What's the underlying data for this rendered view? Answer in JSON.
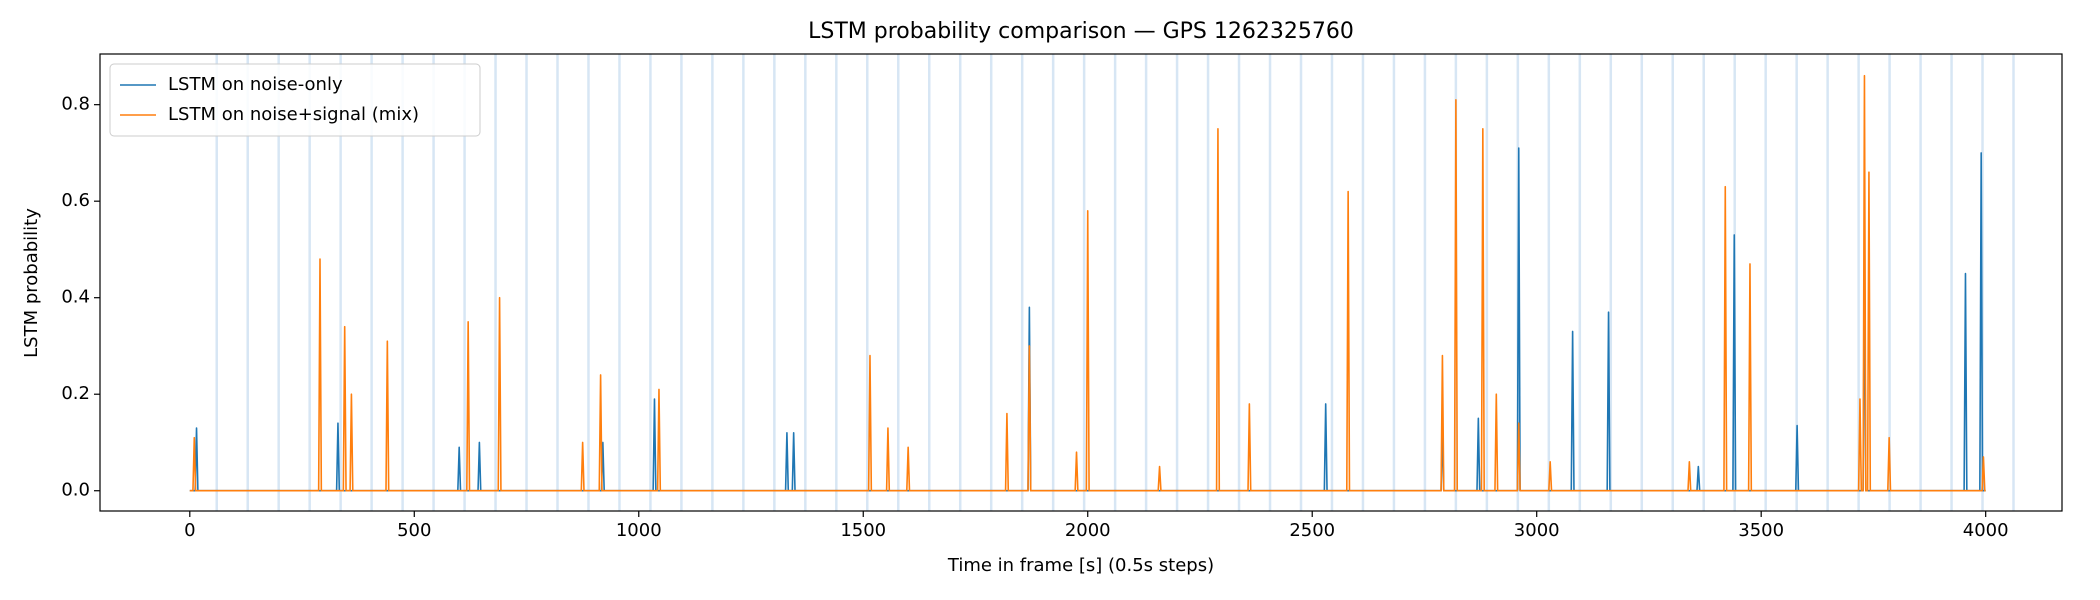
{
  "chart_data": {
    "type": "line",
    "title": "LSTM probability comparison — GPS 1262325760",
    "x_label": "Time in frame [s] (0.5s steps)",
    "y_label": "LSTM probability",
    "xlim": [
      -200,
      4170
    ],
    "ylim": [
      -0.042,
      0.905
    ],
    "xticks": [
      0,
      500,
      1000,
      1500,
      2000,
      2500,
      3000,
      3500,
      4000
    ],
    "yticks": [
      {
        "value": 0,
        "label": "0.0"
      },
      {
        "value": 0.2,
        "label": "0.2"
      },
      {
        "value": 0.4,
        "label": "0.4"
      },
      {
        "value": 0.6,
        "label": "0.6"
      },
      {
        "value": 0.8,
        "label": "0.8"
      }
    ],
    "legend": "upper left",
    "event_color": "#c6dbef",
    "event_lines": [
      60,
      129,
      198,
      267,
      336,
      405,
      474,
      543,
      612,
      681,
      750,
      819,
      888,
      957,
      1026,
      1095,
      1164,
      1233,
      1302,
      1371,
      1440,
      1509,
      1578,
      1647,
      1716,
      1785,
      1854,
      1923,
      1992,
      2061,
      2130,
      2199,
      2268,
      2337,
      2406,
      2475,
      2544,
      2613,
      2682,
      2751,
      2820,
      2889,
      2958,
      3027,
      3096,
      3165,
      3234,
      3303,
      3372,
      3441,
      3510,
      3579,
      3648,
      3717,
      3786,
      3855,
      3924,
      3993,
      4062
    ],
    "series": [
      {
        "name": "LSTM on noise-only",
        "color": "#1f77b4",
        "x": [
          0,
          12,
          15,
          18,
          327,
          330,
          333,
          597,
          600,
          603,
          642,
          645,
          648,
          917,
          920,
          923,
          1032,
          1035,
          1038,
          1327,
          1330,
          1333,
          1342,
          1345,
          1348,
          1867,
          1870,
          1873,
          2527,
          2530,
          2533,
          2787,
          2790,
          2793,
          2867,
          2870,
          2873,
          2957,
          2960,
          2963,
          3077,
          3080,
          3083,
          3157,
          3160,
          3163,
          3357,
          3360,
          3363,
          3437,
          3440,
          3443,
          3577,
          3580,
          3583,
          3727,
          3730,
          3733,
          3952,
          3955,
          3958,
          3987,
          3990,
          3993,
          4000
        ],
        "values": [
          0,
          0,
          0.13,
          0,
          0,
          0.14,
          0,
          0,
          0.09,
          0,
          0,
          0.1,
          0,
          0,
          0.1,
          0,
          0,
          0.19,
          0,
          0,
          0.12,
          0,
          0,
          0.12,
          0,
          0,
          0.38,
          0,
          0,
          0.18,
          0,
          0,
          0.13,
          0,
          0,
          0.15,
          0,
          0,
          0.71,
          0,
          0,
          0.33,
          0,
          0,
          0.37,
          0,
          0,
          0.05,
          0,
          0,
          0.53,
          0,
          0,
          0.135,
          0,
          0,
          0.5,
          0,
          0,
          0.45,
          0,
          0,
          0.7,
          0,
          0
        ]
      },
      {
        "name": "LSTM on noise+signal (mix)",
        "color": "#ff7f0e",
        "x": [
          0,
          7,
          10,
          13,
          287,
          290,
          293,
          342,
          345,
          348,
          357,
          360,
          363,
          437,
          440,
          443,
          617,
          620,
          623,
          687,
          690,
          693,
          872,
          875,
          878,
          912,
          915,
          918,
          1042,
          1045,
          1048,
          1512,
          1515,
          1518,
          1552,
          1555,
          1558,
          1597,
          1600,
          1603,
          1817,
          1820,
          1823,
          1867,
          1870,
          1873,
          1972,
          1975,
          1978,
          1997,
          2000,
          2003,
          2157,
          2160,
          2163,
          2287,
          2290,
          2293,
          2357,
          2360,
          2363,
          2577,
          2580,
          2583,
          2787,
          2790,
          2793,
          2817,
          2820,
          2823,
          2877,
          2880,
          2883,
          2907,
          2910,
          2913,
          2957,
          2960,
          2963,
          3027,
          3030,
          3033,
          3337,
          3340,
          3343,
          3417,
          3420,
          3423,
          3472,
          3475,
          3478,
          3717,
          3720,
          3723,
          3727,
          3730,
          3733,
          3737,
          3740,
          3743,
          3782,
          3785,
          3788,
          3992,
          3995,
          3998,
          4000
        ],
        "values": [
          0,
          0,
          0.11,
          0,
          0,
          0.48,
          0,
          0,
          0.34,
          0,
          0,
          0.2,
          0,
          0,
          0.31,
          0,
          0,
          0.35,
          0,
          0,
          0.4,
          0,
          0,
          0.1,
          0,
          0,
          0.24,
          0,
          0,
          0.21,
          0,
          0,
          0.28,
          0,
          0,
          0.13,
          0,
          0,
          0.09,
          0,
          0,
          0.16,
          0,
          0,
          0.3,
          0,
          0,
          0.08,
          0,
          0,
          0.58,
          0,
          0,
          0.05,
          0,
          0,
          0.75,
          0,
          0,
          0.18,
          0,
          0,
          0.62,
          0,
          0,
          0.28,
          0,
          0,
          0.81,
          0,
          0,
          0.75,
          0,
          0,
          0.2,
          0,
          0,
          0.14,
          0,
          0,
          0.06,
          0,
          0,
          0.06,
          0,
          0,
          0.63,
          0,
          0,
          0.47,
          0,
          0,
          0.19,
          0,
          0,
          0.86,
          0,
          0,
          0.66,
          0,
          0,
          0.11,
          0,
          0,
          0.07,
          0,
          0
        ]
      }
    ]
  }
}
